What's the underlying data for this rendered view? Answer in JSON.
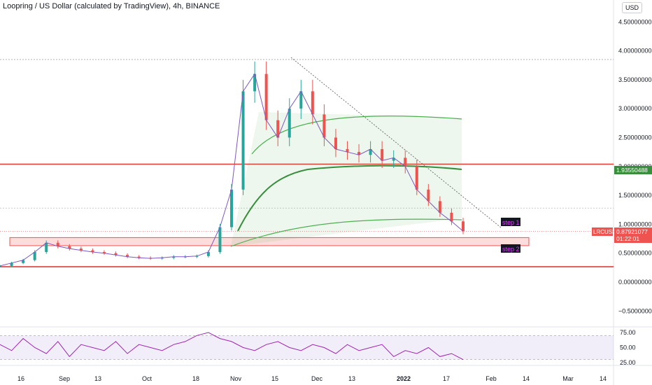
{
  "header": {
    "title": "Loopring / US Dollar (calculated by TradingView), 4h, BINANCE",
    "currency_button": "USD"
  },
  "price_axis": {
    "labels": [
      "4.50000000",
      "4.00000000",
      "3.50000000",
      "3.00000000",
      "2.50000000",
      "2.00000000",
      "1.50000000",
      "1.00000000",
      "0.50000000",
      "0.00000000",
      "−0.50000000"
    ],
    "values": [
      4.5,
      4.0,
      3.5,
      3.0,
      2.5,
      2.0,
      1.5,
      1.0,
      0.5,
      0.0,
      -0.5
    ]
  },
  "rsi_axis": {
    "labels": [
      "75.00",
      "50.00",
      "25.00"
    ],
    "values": [
      75,
      50,
      25
    ],
    "band_upper": 70,
    "band_lower": 30
  },
  "time_axis": {
    "labels": [
      "16",
      "Sep",
      "13",
      "Oct",
      "18",
      "Nov",
      "15",
      "Dec",
      "13",
      "2022",
      "17",
      "Feb",
      "14",
      "Mar",
      "14"
    ]
  },
  "tags": {
    "symbol": "LRCUSD",
    "last_price": "0.87921077",
    "countdown": "01:22:01",
    "ma_value": "1.93550488"
  },
  "annotations": {
    "step1": "step 1",
    "step2": "step 2"
  },
  "colors": {
    "up": "#26a69a",
    "down": "#ef5350",
    "ma": "#388e3c",
    "rsi": "#9c27b0",
    "hline": "#e53935"
  },
  "chart_data": {
    "type": "line",
    "series": [
      {
        "values": [
          0.28,
          0.33,
          0.38,
          0.52,
          0.68,
          0.62,
          0.58,
          0.55,
          0.52,
          0.5,
          0.47,
          0.44,
          0.42,
          0.41,
          0.42,
          0.44,
          0.44,
          0.45,
          0.52,
          0.95,
          1.6,
          3.3,
          3.6,
          2.8,
          2.5,
          3.0,
          3.3,
          2.9,
          2.5,
          2.3,
          2.25,
          2.2,
          2.3,
          2.1,
          2.15,
          2.0,
          1.6,
          1.4,
          1.2,
          1.05,
          0.88
        ]
      }
    ],
    "levels": [
      3.85,
      2.04,
      1.28,
      0.265
    ],
    "zone": [
      0.63,
      0.77
    ],
    "rsi": [
      55,
      45,
      65,
      50,
      40,
      60,
      35,
      55,
      50,
      45,
      60,
      40,
      55,
      50,
      45,
      55,
      60,
      70,
      75,
      65,
      60,
      50,
      45,
      55,
      60,
      50,
      45,
      55,
      50,
      40,
      55,
      45,
      50,
      55,
      35,
      45,
      40,
      50,
      35,
      40,
      30
    ]
  }
}
